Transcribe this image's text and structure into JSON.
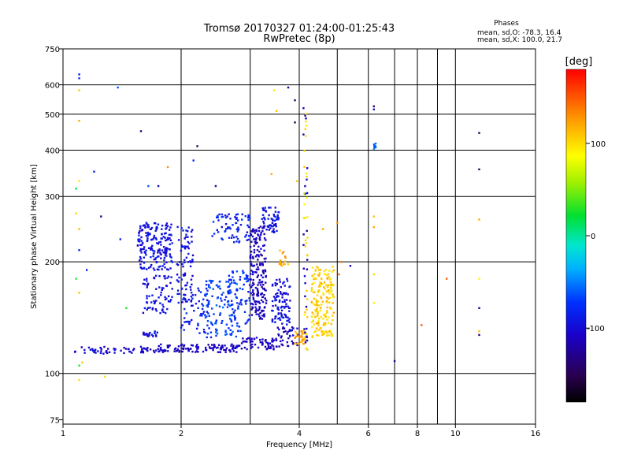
{
  "chart_data": {
    "type": "scatter",
    "title": "Tromsø 20170327 01:24:00-01:25:43",
    "subtitle": "RwPretec (8p)",
    "xlabel": "Frequency [MHz]",
    "ylabel": "Stationary phase Virtual Height [km]",
    "x_scale": "log",
    "y_scale": "log",
    "xlim": [
      1,
      16
    ],
    "ylim": [
      73,
      750
    ],
    "x_ticks": [
      1,
      2,
      4,
      6,
      8,
      10,
      16
    ],
    "x_minor_ticks": [
      3,
      5,
      7,
      9
    ],
    "y_ticks": [
      75,
      100,
      200,
      300,
      400,
      500,
      600,
      750
    ],
    "grid": true,
    "info": {
      "heading": "Phases",
      "line1": "mean, sd,O: -78.3, 16.4",
      "line2": "mean, sd,X: 100.0, 21.7"
    },
    "colorbar": {
      "label": "[deg]",
      "min": -180,
      "max": 180,
      "ticks": [
        100,
        0,
        -100
      ],
      "colormap": "rainbow"
    },
    "clusters": [
      {
        "x": [
          1.07,
          1.75
        ],
        "y": [
          113,
          118
        ],
        "phase": -105,
        "n": 60
      },
      {
        "x": [
          1.75,
          2.8
        ],
        "y": [
          114,
          120
        ],
        "phase": -108,
        "n": 110
      },
      {
        "x": [
          2.8,
          3.5
        ],
        "y": [
          116,
          125
        ],
        "phase": -112,
        "n": 60
      },
      {
        "x": [
          3.5,
          4.0
        ],
        "y": [
          118,
          135
        ],
        "phase": -110,
        "n": 40
      },
      {
        "x": [
          1.6,
          1.75
        ],
        "y": [
          125,
          130
        ],
        "phase": -100,
        "n": 20
      },
      {
        "x": [
          1.55,
          1.9
        ],
        "y": [
          190,
          255
        ],
        "phase": -95,
        "n": 190
      },
      {
        "x": [
          1.6,
          1.9
        ],
        "y": [
          145,
          185
        ],
        "phase": -95,
        "n": 70
      },
      {
        "x": [
          1.95,
          2.15
        ],
        "y": [
          155,
          250
        ],
        "phase": -95,
        "n": 80
      },
      {
        "x": [
          2.0,
          2.4
        ],
        "y": [
          128,
          170
        ],
        "phase": -85,
        "n": 60
      },
      {
        "x": [
          2.3,
          2.8
        ],
        "y": [
          125,
          180
        ],
        "phase": -70,
        "n": 110
      },
      {
        "x": [
          2.6,
          3.0
        ],
        "y": [
          130,
          190
        ],
        "phase": -75,
        "n": 70
      },
      {
        "x": [
          2.4,
          3.0
        ],
        "y": [
          225,
          270
        ],
        "phase": -85,
        "n": 70
      },
      {
        "x": [
          3.0,
          3.3
        ],
        "y": [
          140,
          250
        ],
        "phase": -112,
        "n": 190
      },
      {
        "x": [
          3.2,
          3.55
        ],
        "y": [
          240,
          280
        ],
        "phase": -95,
        "n": 60
      },
      {
        "x": [
          3.4,
          3.8
        ],
        "y": [
          135,
          180
        ],
        "phase": -95,
        "n": 90
      },
      {
        "x": [
          3.55,
          3.75
        ],
        "y": [
          195,
          215
        ],
        "phase": 120,
        "n": 15
      },
      {
        "x": [
          3.9,
          4.15
        ],
        "y": [
          120,
          130
        ],
        "phase": 120,
        "n": 30
      },
      {
        "x": [
          4.3,
          4.9
        ],
        "y": [
          125,
          195
        ],
        "phase": 105,
        "n": 180
      },
      {
        "x": [
          4.1,
          4.2
        ],
        "y": [
          115,
          560
        ],
        "phase": 100,
        "n": 35
      },
      {
        "x": [
          4.1,
          4.2
        ],
        "y": [
          115,
          560
        ],
        "phase": -110,
        "n": 25
      },
      {
        "x": [
          6.2,
          6.3
        ],
        "y": [
          390,
          420
        ],
        "phase": -60,
        "n": 10
      }
    ],
    "points": [
      {
        "x": 1.1,
        "y": 640,
        "phase": -90
      },
      {
        "x": 1.1,
        "y": 625,
        "phase": -80
      },
      {
        "x": 1.1,
        "y": 580,
        "phase": 110
      },
      {
        "x": 1.1,
        "y": 480,
        "phase": 120
      },
      {
        "x": 1.1,
        "y": 330,
        "phase": 95
      },
      {
        "x": 1.08,
        "y": 315,
        "phase": 20
      },
      {
        "x": 1.38,
        "y": 590,
        "phase": -60
      },
      {
        "x": 1.58,
        "y": 450,
        "phase": -130
      },
      {
        "x": 2.2,
        "y": 410,
        "phase": -150
      },
      {
        "x": 2.15,
        "y": 375,
        "phase": -80
      },
      {
        "x": 3.75,
        "y": 590,
        "phase": -130
      },
      {
        "x": 3.45,
        "y": 580,
        "phase": 95
      },
      {
        "x": 3.5,
        "y": 510,
        "phase": 110
      },
      {
        "x": 3.9,
        "y": 545,
        "phase": -140
      },
      {
        "x": 3.9,
        "y": 475,
        "phase": -150
      },
      {
        "x": 6.2,
        "y": 525,
        "phase": -150
      },
      {
        "x": 6.2,
        "y": 515,
        "phase": -100
      },
      {
        "x": 11.5,
        "y": 445,
        "phase": -150
      },
      {
        "x": 11.5,
        "y": 355,
        "phase": -140
      },
      {
        "x": 11.5,
        "y": 260,
        "phase": 120
      },
      {
        "x": 11.5,
        "y": 180,
        "phase": 90
      },
      {
        "x": 11.5,
        "y": 150,
        "phase": -130
      },
      {
        "x": 11.5,
        "y": 130,
        "phase": 110
      },
      {
        "x": 11.5,
        "y": 127,
        "phase": -140
      },
      {
        "x": 9.5,
        "y": 180,
        "phase": 150
      },
      {
        "x": 8.2,
        "y": 135,
        "phase": 150
      },
      {
        "x": 7.0,
        "y": 108,
        "phase": -130
      },
      {
        "x": 6.2,
        "y": 265,
        "phase": 110
      },
      {
        "x": 6.2,
        "y": 248,
        "phase": 120
      },
      {
        "x": 6.2,
        "y": 185,
        "phase": 100
      },
      {
        "x": 6.2,
        "y": 155,
        "phase": 90
      },
      {
        "x": 1.08,
        "y": 270,
        "phase": 100
      },
      {
        "x": 1.1,
        "y": 245,
        "phase": 115
      },
      {
        "x": 1.25,
        "y": 265,
        "phase": -130
      },
      {
        "x": 1.2,
        "y": 350,
        "phase": -80
      },
      {
        "x": 1.1,
        "y": 215,
        "phase": -80
      },
      {
        "x": 1.08,
        "y": 180,
        "phase": 30
      },
      {
        "x": 1.1,
        "y": 165,
        "phase": 110
      },
      {
        "x": 1.15,
        "y": 190,
        "phase": -90
      },
      {
        "x": 1.1,
        "y": 105,
        "phase": 30
      },
      {
        "x": 1.1,
        "y": 96,
        "phase": 100
      },
      {
        "x": 1.12,
        "y": 107,
        "phase": 110
      },
      {
        "x": 1.28,
        "y": 98,
        "phase": 100
      },
      {
        "x": 1.45,
        "y": 150,
        "phase": 30
      },
      {
        "x": 1.4,
        "y": 230,
        "phase": -80
      },
      {
        "x": 1.65,
        "y": 320,
        "phase": -60
      },
      {
        "x": 1.75,
        "y": 320,
        "phase": -120
      },
      {
        "x": 1.85,
        "y": 360,
        "phase": 130
      },
      {
        "x": 2.45,
        "y": 320,
        "phase": -120
      },
      {
        "x": 3.4,
        "y": 345,
        "phase": 120
      },
      {
        "x": 3.95,
        "y": 330,
        "phase": 110
      },
      {
        "x": 4.15,
        "y": 305,
        "phase": -60
      },
      {
        "x": 4.6,
        "y": 245,
        "phase": 120
      },
      {
        "x": 5.0,
        "y": 255,
        "phase": 130
      },
      {
        "x": 5.05,
        "y": 185,
        "phase": 140
      },
      {
        "x": 5.4,
        "y": 195,
        "phase": -110
      },
      {
        "x": 5.1,
        "y": 200,
        "phase": 140
      }
    ]
  }
}
